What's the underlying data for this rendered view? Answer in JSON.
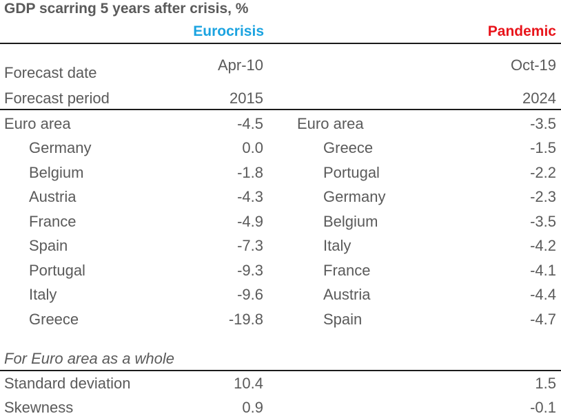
{
  "chart_data": {
    "type": "table",
    "title": "GDP scarring 5 years after crisis, %",
    "columns": [
      {
        "name": "Eurocrisis",
        "color": "#1ba3e0"
      },
      {
        "name": "Pandemic",
        "color": "#e8141b"
      }
    ],
    "meta_rows": [
      {
        "label": "Forecast date",
        "eurocrisis": "Apr-10",
        "pandemic": "Oct-19"
      },
      {
        "label": "Forecast period",
        "eurocrisis": "2015",
        "pandemic": "2024"
      }
    ],
    "eurocrisis": {
      "aggregate": {
        "label": "Euro area",
        "value": "-4.5"
      },
      "countries": [
        {
          "label": "Germany",
          "value": "0.0"
        },
        {
          "label": "Belgium",
          "value": "-1.8"
        },
        {
          "label": "Austria",
          "value": "-4.3"
        },
        {
          "label": "France",
          "value": "-4.9"
        },
        {
          "label": "Spain",
          "value": "-7.3"
        },
        {
          "label": "Portugal",
          "value": "-9.3"
        },
        {
          "label": "Italy",
          "value": "-9.6"
        },
        {
          "label": "Greece",
          "value": "-19.8"
        }
      ]
    },
    "pandemic": {
      "aggregate": {
        "label": "Euro area",
        "value": "-3.5"
      },
      "countries": [
        {
          "label": "Greece",
          "value": "-1.5"
        },
        {
          "label": "Portugal",
          "value": "-2.2"
        },
        {
          "label": "Germany",
          "value": "-2.3"
        },
        {
          "label": "Belgium",
          "value": "-3.5"
        },
        {
          "label": "Italy",
          "value": "-4.2"
        },
        {
          "label": "France",
          "value": "-4.1"
        },
        {
          "label": "Austria",
          "value": "-4.4"
        },
        {
          "label": "Spain",
          "value": "-4.7"
        }
      ]
    },
    "whole_section_label": "For Euro area as a whole",
    "stats": [
      {
        "label": "Standard deviation",
        "eurocrisis": "10.4",
        "pandemic": "1.5"
      },
      {
        "label": "Skewness",
        "eurocrisis": "0.9",
        "pandemic": "-0.1"
      }
    ]
  }
}
